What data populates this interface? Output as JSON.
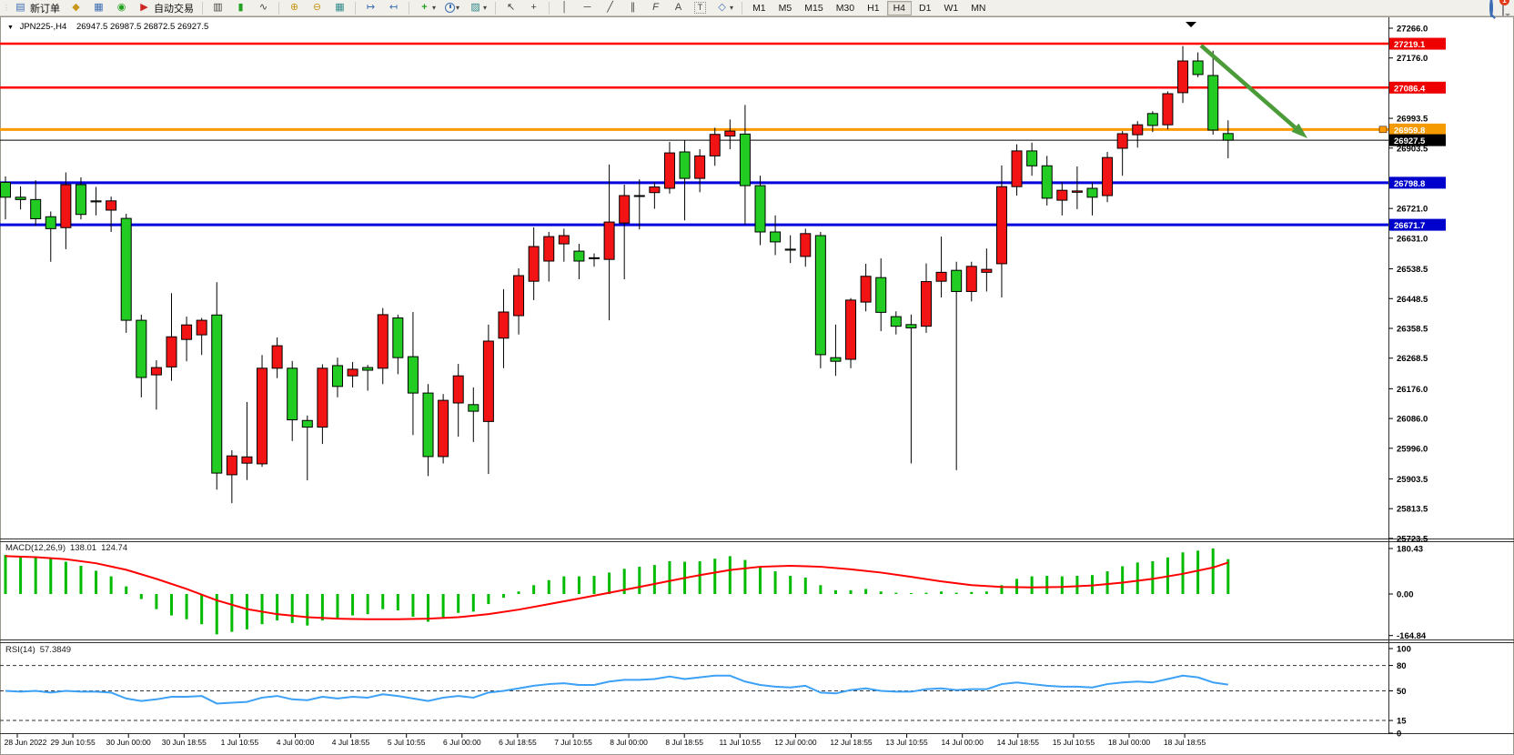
{
  "toolbar": {
    "new_order": "新订单",
    "auto_trading": "自动交易",
    "timeframes": [
      "M1",
      "M5",
      "M15",
      "M30",
      "H1",
      "H4",
      "D1",
      "W1",
      "MN"
    ],
    "active_timeframe": "H4",
    "badge": "1"
  },
  "icons": {
    "new_order": "▤",
    "deposit": "◆",
    "history_center": "▦",
    "signals": "◉",
    "autotrade_play": "▶",
    "bar_chart": "▥",
    "candle_chart": "▮",
    "line_chart": "∿",
    "zoom_in": "⊕",
    "zoom_out": "⊖",
    "tile_windows": "▦",
    "auto_scroll": "↦",
    "chart_shift": "↤",
    "add_indicator": "+",
    "templates": "▨",
    "caret": "▾",
    "cursor": "↖",
    "crosshair": "+",
    "vertical_line": "│",
    "horizontal_line": "─",
    "trendline": "╱",
    "equidistant_channel": "∥",
    "fibonacci": "F",
    "text": "A",
    "text_label": "T",
    "shapes": "◇",
    "grip": "⋮⋮"
  },
  "chart": {
    "symbol": "JPN225-,H4",
    "ohlc": "26947.5 26987.5 26872.5 26927.5"
  },
  "indicators": {
    "macd": {
      "name": "MACD(12,26,9)",
      "main": "138.01",
      "signal": "124.74"
    },
    "rsi": {
      "name": "RSI(14)",
      "value": "57.3849"
    }
  },
  "chart_data": {
    "type": "candlestick",
    "symbol": "JPN225-",
    "timeframe": "H4",
    "current_bar": {
      "open": 26947.5,
      "high": 26987.5,
      "low": 26872.5,
      "close": 26927.5
    },
    "colors": {
      "bull": "#f21414",
      "bear": "#22cc22",
      "wick": "#000000",
      "macd_bar": "#00bb00",
      "macd_signal": "#ff0000",
      "rsi_line": "#3da1f5",
      "arrow": "#4b9b39",
      "level_red": "#ff0000",
      "level_blue": "#0000dd",
      "level_orange": "#ff9900",
      "price_line": "#000000"
    },
    "y_axis_range": [
      25723.5,
      27266.0
    ],
    "y_ticks": [
      27266.0,
      27176.0,
      26993.5,
      26903.5,
      26721.0,
      26631.0,
      26538.5,
      26448.5,
      26358.5,
      26268.5,
      26176.0,
      26086.0,
      25996.0,
      25903.5,
      25813.5,
      25723.5
    ],
    "levels": [
      {
        "price": 27219.1,
        "label": "27219.1",
        "color": "#ff0000",
        "width": 2.5,
        "badge": "#ee0000"
      },
      {
        "price": 27086.4,
        "label": "27086.4",
        "color": "#ff0000",
        "width": 2.5,
        "badge": "#ee0000"
      },
      {
        "price": 26959.8,
        "label": "26959.8",
        "color": "#ff9900",
        "width": 3,
        "badge": "#f59a00",
        "handle": true
      },
      {
        "price": 26927.5,
        "label": "26927.5",
        "color": "#000000",
        "width": 1,
        "badge": "#000000"
      },
      {
        "price": 26798.8,
        "label": "26798.8",
        "color": "#0000dd",
        "width": 3,
        "badge": "#0000cc"
      },
      {
        "price": 26671.7,
        "label": "26671.7",
        "color": "#0000dd",
        "width": 3,
        "badge": "#0000cc"
      }
    ],
    "candles": [
      [
        26800,
        26818,
        26688,
        26755
      ],
      [
        26755,
        26788,
        26718,
        26748
      ],
      [
        26748,
        26806,
        26668,
        26690
      ],
      [
        26696,
        26712,
        26560,
        26660
      ],
      [
        26663,
        26830,
        26598,
        26793
      ],
      [
        26793,
        26815,
        26688,
        26703
      ],
      [
        26744,
        26786,
        26700,
        26741
      ],
      [
        26716,
        26757,
        26650,
        26744
      ],
      [
        26691,
        26705,
        26345,
        26383
      ],
      [
        26383,
        26400,
        26150,
        26210
      ],
      [
        26218,
        26262,
        26113,
        26240
      ],
      [
        26242,
        26465,
        26200,
        26333
      ],
      [
        26325,
        26394,
        26259,
        26369
      ],
      [
        26339,
        26390,
        26278,
        26383
      ],
      [
        26399,
        26498,
        25871,
        25921
      ],
      [
        25916,
        25990,
        25830,
        25973
      ],
      [
        25951,
        26136,
        25900,
        25970
      ],
      [
        25949,
        26278,
        25940,
        26238
      ],
      [
        26238,
        26331,
        26208,
        26306
      ],
      [
        26238,
        26260,
        26018,
        26082
      ],
      [
        26080,
        26095,
        25899,
        26060
      ],
      [
        26060,
        26250,
        26009,
        26238
      ],
      [
        26246,
        26270,
        26150,
        26183
      ],
      [
        26215,
        26257,
        26180,
        26235
      ],
      [
        26240,
        26248,
        26170,
        26232
      ],
      [
        26238,
        26420,
        26190,
        26400
      ],
      [
        26390,
        26400,
        26220,
        26270
      ],
      [
        26273,
        26408,
        26036,
        26163
      ],
      [
        26163,
        26190,
        25912,
        25971
      ],
      [
        25971,
        26160,
        25950,
        26141
      ],
      [
        26133,
        26251,
        26031,
        26215
      ],
      [
        26128,
        26180,
        26015,
        26108
      ],
      [
        26077,
        26370,
        25918,
        26320
      ],
      [
        26329,
        26477,
        26238,
        26408
      ],
      [
        26397,
        26540,
        26340,
        26518
      ],
      [
        26501,
        26664,
        26444,
        26606
      ],
      [
        26562,
        26650,
        26500,
        26636
      ],
      [
        26614,
        26660,
        26560,
        26639
      ],
      [
        26592,
        26614,
        26507,
        26562
      ],
      [
        26570,
        26585,
        26545,
        26572
      ],
      [
        26567,
        26854,
        26383,
        26680
      ],
      [
        26677,
        26793,
        26507,
        26760
      ],
      [
        26758,
        26809,
        26658,
        26760
      ],
      [
        26769,
        26800,
        26720,
        26786
      ],
      [
        26782,
        26922,
        26766,
        26889
      ],
      [
        26892,
        26928,
        26685,
        26812
      ],
      [
        26812,
        26900,
        26770,
        26880
      ],
      [
        26880,
        26965,
        26850,
        26945
      ],
      [
        26940,
        26990,
        26900,
        26955
      ],
      [
        26946,
        27034,
        26672,
        26790
      ],
      [
        26790,
        26820,
        26610,
        26650
      ],
      [
        26650,
        26700,
        26580,
        26620
      ],
      [
        26598,
        26640,
        26556,
        26595
      ],
      [
        26576,
        26660,
        26545,
        26645
      ],
      [
        26639,
        26650,
        26238,
        26279
      ],
      [
        26270,
        26370,
        26215,
        26259
      ],
      [
        26265,
        26450,
        26238,
        26444
      ],
      [
        26438,
        26554,
        26410,
        26516
      ],
      [
        26512,
        26570,
        26350,
        26407
      ],
      [
        26394,
        26410,
        26340,
        26365
      ],
      [
        26370,
        26400,
        25950,
        26360
      ],
      [
        26365,
        26555,
        26345,
        26500
      ],
      [
        26501,
        26636,
        26452,
        26528
      ],
      [
        26534,
        26560,
        25930,
        26470
      ],
      [
        26470,
        26560,
        26440,
        26546
      ],
      [
        26528,
        26600,
        26470,
        26537
      ],
      [
        26554,
        26851,
        26452,
        26787
      ],
      [
        26787,
        26915,
        26760,
        26895
      ],
      [
        26895,
        26920,
        26820,
        26850
      ],
      [
        26850,
        26880,
        26730,
        26752
      ],
      [
        26746,
        26800,
        26700,
        26776
      ],
      [
        26770,
        26848,
        26719,
        26774
      ],
      [
        26782,
        26800,
        26700,
        26755
      ],
      [
        26760,
        26892,
        26740,
        26875
      ],
      [
        26903,
        26955,
        26820,
        26947
      ],
      [
        26944,
        26985,
        26905,
        26974
      ],
      [
        27008,
        27015,
        26952,
        26972
      ],
      [
        26974,
        27075,
        26960,
        27068
      ],
      [
        27071,
        27212,
        27040,
        27167
      ],
      [
        27167,
        27193,
        27118,
        27126
      ],
      [
        27123,
        27198,
        26944,
        26958
      ],
      [
        26947.5,
        26987.5,
        26872.5,
        26927.5
      ]
    ],
    "x_labels": [
      "28 Jun 2022",
      "29 Jun 10:55",
      "30 Jun 00:00",
      "30 Jun 18:55",
      "1 Jul 10:55",
      "4 Jul 00:00",
      "4 Jul 18:55",
      "5 Jul 10:55",
      "6 Jul 00:00",
      "6 Jul 18:55",
      "7 Jul 10:55",
      "8 Jul 00:00",
      "8 Jul 18:55",
      "11 Jul 10:55",
      "12 Jul 00:00",
      "12 Jul 18:55",
      "13 Jul 10:55",
      "14 Jul 00:00",
      "14 Jul 18:55",
      "15 Jul 10:55",
      "18 Jul 00:00",
      "18 Jul 18:55"
    ],
    "macd": {
      "params": "12,26,9",
      "current_main": 138.01,
      "current_signal": 124.74,
      "scale": [
        [
          180.43,
          "180.43"
        ],
        [
          0,
          "0.00"
        ],
        [
          -164.84,
          "-164.84"
        ]
      ],
      "histogram": [
        155,
        150,
        146,
        140,
        128,
        112,
        92,
        70,
        30,
        -20,
        -60,
        -85,
        -100,
        -120,
        -160,
        -150,
        -140,
        -120,
        -105,
        -115,
        -125,
        -105,
        -95,
        -85,
        -80,
        -60,
        -65,
        -90,
        -110,
        -95,
        -75,
        -70,
        -40,
        -15,
        10,
        35,
        55,
        70,
        70,
        72,
        85,
        100,
        108,
        115,
        130,
        128,
        130,
        140,
        150,
        135,
        110,
        90,
        72,
        65,
        35,
        15,
        15,
        20,
        10,
        5,
        0,
        5,
        10,
        5,
        8,
        10,
        35,
        60,
        70,
        72,
        70,
        72,
        75,
        90,
        110,
        125,
        130,
        145,
        165,
        172,
        180.43,
        138.01
      ],
      "signal": [
        [
          0,
          150
        ],
        [
          2,
          146
        ],
        [
          4,
          138
        ],
        [
          6,
          122
        ],
        [
          8,
          96
        ],
        [
          10,
          60
        ],
        [
          12,
          20
        ],
        [
          14,
          -25
        ],
        [
          16,
          -60
        ],
        [
          18,
          -80
        ],
        [
          20,
          -92
        ],
        [
          22,
          -98
        ],
        [
          24,
          -100
        ],
        [
          26,
          -100
        ],
        [
          28,
          -98
        ],
        [
          30,
          -92
        ],
        [
          32,
          -80
        ],
        [
          34,
          -62
        ],
        [
          36,
          -40
        ],
        [
          38,
          -18
        ],
        [
          40,
          5
        ],
        [
          42,
          28
        ],
        [
          44,
          52
        ],
        [
          46,
          75
        ],
        [
          48,
          95
        ],
        [
          50,
          108
        ],
        [
          52,
          112
        ],
        [
          54,
          108
        ],
        [
          56,
          98
        ],
        [
          58,
          85
        ],
        [
          60,
          68
        ],
        [
          62,
          50
        ],
        [
          64,
          35
        ],
        [
          66,
          28
        ],
        [
          68,
          26
        ],
        [
          70,
          28
        ],
        [
          72,
          34
        ],
        [
          74,
          45
        ],
        [
          76,
          60
        ],
        [
          78,
          80
        ],
        [
          80,
          105
        ],
        [
          81,
          124.74
        ]
      ]
    },
    "rsi": {
      "period": 14,
      "current": 57.3849,
      "scale": [
        [
          100,
          "100"
        ],
        [
          80,
          "80"
        ],
        [
          50,
          "50"
        ],
        [
          15,
          "15"
        ],
        [
          0,
          "0"
        ]
      ],
      "dashed_levels": [
        80,
        50,
        15
      ],
      "values": [
        50,
        49,
        50,
        48,
        50,
        49,
        49,
        48,
        41,
        38,
        40,
        43,
        43,
        44,
        35,
        36,
        37,
        42,
        44,
        40,
        39,
        43,
        41,
        43,
        42,
        46,
        44,
        41,
        38,
        42,
        44,
        42,
        48,
        50,
        53,
        56,
        58,
        59,
        57,
        57,
        61,
        63,
        63,
        64,
        67,
        64,
        66,
        68,
        68,
        61,
        57,
        55,
        54,
        56,
        48,
        47,
        51,
        53,
        50,
        49,
        49,
        52,
        53,
        51,
        52,
        52,
        58,
        60,
        58,
        56,
        55,
        55,
        54,
        58,
        60,
        61,
        60,
        64,
        68,
        66,
        60,
        57.38
      ]
    },
    "arrow": {
      "from": [
        1320,
        50
      ],
      "to": [
        1437,
        152
      ]
    },
    "end_marker": {
      "x": 1309,
      "y": 24
    }
  }
}
